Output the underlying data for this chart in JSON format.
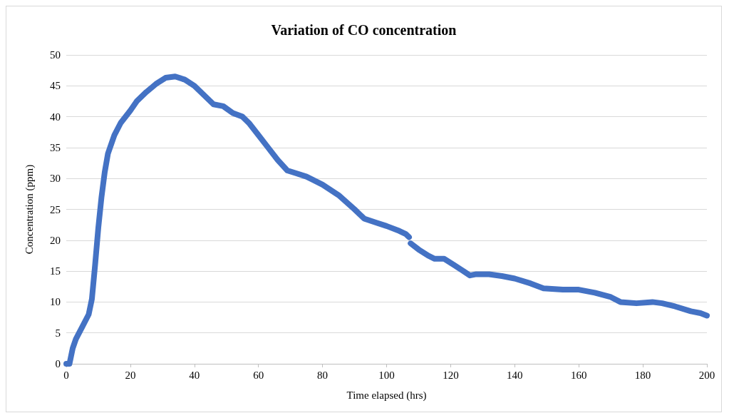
{
  "chart_data": {
    "type": "line",
    "title": "Variation of CO concentration",
    "xlabel": "Time elapsed (hrs)",
    "ylabel": "Concentration (ppm)",
    "x": [
      0,
      1,
      2,
      3,
      5,
      7,
      8,
      9,
      10,
      11,
      12,
      13,
      15,
      17,
      20,
      22,
      25,
      28,
      31,
      34,
      37,
      40,
      43,
      46,
      49,
      52,
      55,
      57,
      60,
      63,
      66,
      69,
      72,
      75,
      80,
      85,
      90,
      93,
      97,
      100,
      104,
      106,
      107,
      107.2,
      107.5,
      110,
      113,
      115,
      118,
      121,
      124,
      126,
      128,
      132,
      136,
      140,
      145,
      149,
      155,
      160,
      165,
      170,
      173,
      178,
      183,
      186,
      190,
      195,
      198,
      200
    ],
    "series": [
      {
        "color": "#4472c4",
        "values": [
          0,
          0,
          2.5,
          4,
          6,
          8,
          10.5,
          16,
          22,
          27,
          31,
          34,
          37,
          39,
          41,
          42.5,
          44,
          45.3,
          46.3,
          46.5,
          46,
          45,
          43.5,
          42,
          41.7,
          40.6,
          40,
          39,
          37,
          35,
          33,
          31.3,
          30.8,
          30.3,
          29,
          27.3,
          25,
          23.5,
          22.8,
          22.3,
          21.5,
          21,
          20.5,
          null,
          19.5,
          18.5,
          17.5,
          17,
          17,
          16,
          15,
          14.3,
          14.5,
          14.5,
          14.2,
          13.8,
          13,
          12.2,
          12,
          12,
          11.5,
          10.8,
          10,
          9.8,
          10,
          9.8,
          9.3,
          8.5,
          8.2,
          7.8
        ]
      }
    ],
    "xlim": [
      0,
      200
    ],
    "xticks": [
      0,
      20,
      40,
      60,
      80,
      100,
      120,
      140,
      160,
      180,
      200
    ],
    "ylim": [
      0,
      50
    ],
    "yticks": [
      0,
      5,
      10,
      15,
      20,
      25,
      30,
      35,
      40,
      45,
      50
    ],
    "grid": "y",
    "marker": "none",
    "line_style": "solid"
  }
}
